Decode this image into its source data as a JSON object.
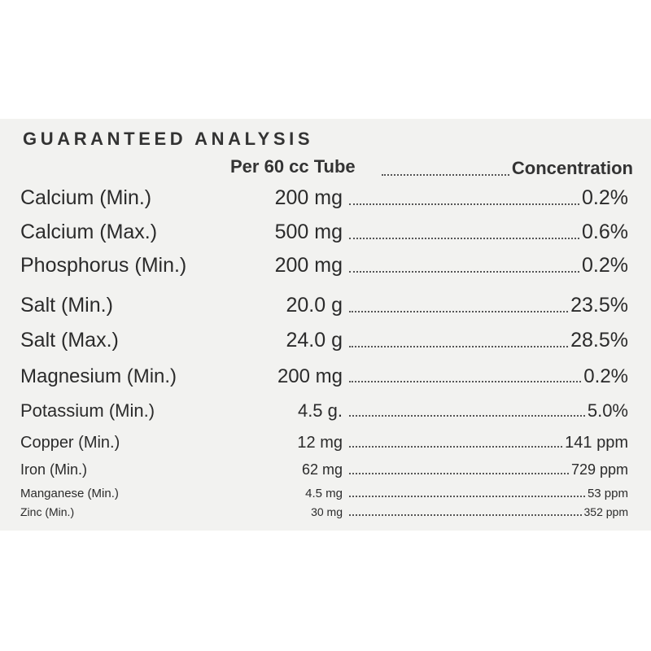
{
  "label": {
    "title": "GUARANTEED ANALYSIS",
    "header": {
      "amount": "Per 60 cc Tube",
      "concentration": "Concentration"
    },
    "rows": [
      {
        "name": "Calcium (Min.)",
        "amount": "200 mg",
        "concentration": "0.2%"
      },
      {
        "name": "Calcium (Max.)",
        "amount": "500 mg",
        "concentration": "0.6%"
      },
      {
        "name": "Phosphorus (Min.)",
        "amount": "200 mg",
        "concentration": "0.2%"
      },
      {
        "name": "Salt (Min.)",
        "amount": "20.0 g",
        "concentration": "23.5%"
      },
      {
        "name": "Salt (Max.)",
        "amount": "24.0 g",
        "concentration": "28.5%"
      },
      {
        "name": "Magnesium (Min.)",
        "amount": "200 mg",
        "concentration": "0.2%"
      },
      {
        "name": "Potassium (Min.)",
        "amount": "4.5 g.",
        "concentration": "5.0%"
      },
      {
        "name": "Copper (Min.)",
        "amount": "12 mg",
        "concentration": "141 ppm"
      },
      {
        "name": "Iron (Min.)",
        "amount": "62 mg",
        "concentration": "729 ppm"
      },
      {
        "name": "Manganese (Min.)",
        "amount": "4.5 mg",
        "concentration": "53 ppm"
      },
      {
        "name": "Zinc (Min.)",
        "amount": "30 mg",
        "concentration": "352 ppm"
      }
    ]
  }
}
